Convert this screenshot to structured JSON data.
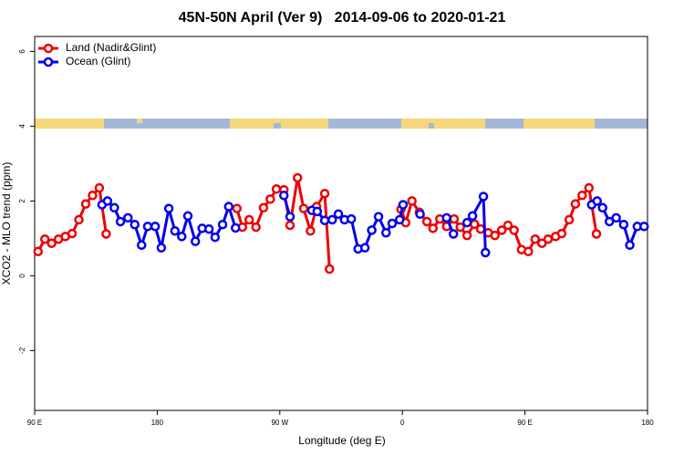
{
  "chart_data": {
    "type": "line",
    "title": "45N-50N April (Ver 9)   2014-09-06 to 2020-01-21",
    "x_label": "Longitude (deg E)",
    "y_label": "XCO2 - MLO trend (ppm)",
    "xlim": [
      90,
      540
    ],
    "ylim": [
      -3.6,
      6.4
    ],
    "xticks": [
      {
        "value": 90,
        "label": "90 E"
      },
      180,
      {
        "value": 270,
        "label": "90 W"
      },
      {
        "value": 360,
        "label": "0"
      },
      {
        "value": 450,
        "label": "90 E"
      },
      {
        "value": 540,
        "label": "180"
      }
    ],
    "yticks": [
      -2,
      0,
      2,
      4,
      6
    ],
    "legend": "top-left",
    "series": [
      {
        "name": "Land (Nadir&Glint)",
        "color": "#ee0000",
        "x": [
          92.5,
          97.5,
          102.5,
          107.5,
          112.5,
          117.5,
          122.5,
          127.5,
          132.5,
          137.5,
          142.5,
          null,
          238.5,
          242.5,
          247.5,
          252.5,
          258,
          263,
          267.5,
          273,
          277.5,
          283,
          287.5,
          292.5,
          297,
          303,
          306.5,
          null,
          359,
          362.5,
          367,
          372.5,
          378,
          382.5,
          387.5,
          392.5,
          398,
          402.5,
          407.5,
          413,
          417.5,
          423,
          428,
          433,
          437.5,
          442,
          447.5,
          452.5,
          457.5,
          462.5,
          467,
          472.5,
          477,
          482.5,
          487,
          492,
          497,
          502.5
        ],
        "values": [
          0.65,
          0.98,
          0.87,
          0.98,
          1.05,
          1.13,
          1.5,
          1.92,
          2.15,
          2.35,
          1.12,
          null,
          1.8,
          1.3,
          1.5,
          1.3,
          1.82,
          2.05,
          2.32,
          2.3,
          1.35,
          2.62,
          1.8,
          1.2,
          1.85,
          2.2,
          0.18,
          null,
          1.78,
          1.42,
          2.0,
          1.7,
          1.45,
          1.27,
          1.52,
          1.32,
          1.52,
          1.3,
          1.08,
          1.38,
          1.25,
          1.15,
          1.08,
          1.22,
          1.35,
          1.22,
          0.7,
          0.65,
          0.98,
          0.87,
          0.98,
          1.05,
          1.13,
          1.5,
          1.92,
          2.15,
          2.35,
          1.12
        ]
      },
      {
        "name": "Ocean (Glint)",
        "color": "#0000ee",
        "x": [
          139.5,
          143.5,
          148.5,
          153,
          158.5,
          163.5,
          168.5,
          173,
          178.5,
          183,
          188.5,
          193,
          198,
          202.5,
          208,
          213,
          218,
          222.5,
          228,
          232.5,
          237.5,
          null,
          273,
          277.5,
          null,
          293.5,
          297.5,
          303,
          308.5,
          313,
          317.5,
          322.5,
          327.5,
          332.5,
          337.5,
          342.5,
          348,
          352.5,
          358,
          360.5,
          null,
          373,
          null,
          392.5,
          397.5,
          null,
          407.5,
          411.5,
          419.5,
          421,
          null,
          499,
          503,
          507,
          512,
          517,
          522.5,
          527,
          532.5,
          537.5
        ],
        "values": [
          1.9,
          2.0,
          1.82,
          1.45,
          1.55,
          1.37,
          0.82,
          1.32,
          1.32,
          0.75,
          1.8,
          1.2,
          1.05,
          1.6,
          0.92,
          1.27,
          1.25,
          1.03,
          1.37,
          1.85,
          1.28,
          null,
          2.15,
          1.58,
          null,
          1.75,
          1.72,
          1.48,
          1.5,
          1.65,
          1.5,
          1.52,
          0.72,
          0.75,
          1.22,
          1.58,
          1.15,
          1.4,
          1.5,
          1.9,
          null,
          1.65,
          null,
          1.55,
          1.12,
          null,
          1.42,
          1.6,
          2.12,
          0.62,
          null,
          1.9,
          2.0,
          1.82,
          1.45,
          1.55,
          1.37,
          0.82,
          1.32,
          1.32
        ]
      }
    ]
  }
}
